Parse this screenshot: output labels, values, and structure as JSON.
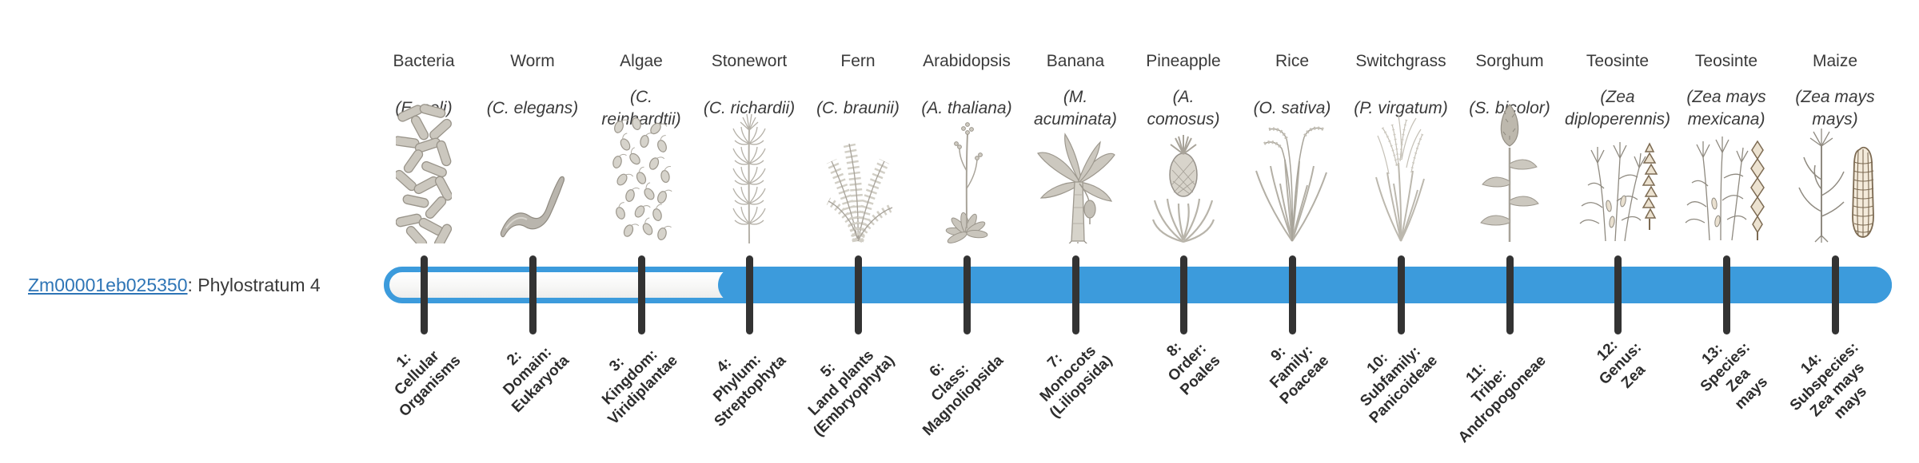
{
  "gene": {
    "id": "Zm00001eb025350",
    "label_suffix": ": Phylostratum 4"
  },
  "timeline": {
    "bar_color": "#3C9BDC",
    "tick_color": "#333333",
    "current_phylostratum": 4,
    "total_strata": 14
  },
  "link_color": "#2E75B6",
  "taxa": [
    {
      "stratum": 1,
      "organism": "Bacteria",
      "species": "(E. coli)",
      "stratum_label": "1:\nCellular\nOrganisms",
      "icon": "bacteria"
    },
    {
      "stratum": 2,
      "organism": "Worm",
      "species": "(C. elegans)",
      "stratum_label": "2:\nDomain:\nEukaryota",
      "icon": "worm"
    },
    {
      "stratum": 3,
      "organism": "Algae",
      "species": "(C. reinhardtii)",
      "stratum_label": "3:\nKingdom:\nViridiplantae",
      "icon": "algae"
    },
    {
      "stratum": 4,
      "organism": "Stonewort",
      "species": "(C. richardii)",
      "stratum_label": "4:\nPhylum:\nStreptophyta",
      "icon": "stonewort"
    },
    {
      "stratum": 5,
      "organism": "Fern",
      "species": "(C. braunii)",
      "stratum_label": "5:\nLand plants\n(Embryophyta)",
      "icon": "fern"
    },
    {
      "stratum": 6,
      "organism": "Arabidopsis",
      "species": "(A. thaliana)",
      "stratum_label": "6:\nClass:\nMagnoliopsida",
      "icon": "arabidopsis"
    },
    {
      "stratum": 7,
      "organism": "Banana",
      "species": "(M. acuminata)",
      "stratum_label": "7:\nMonocots\n(Liliopsida)",
      "icon": "banana"
    },
    {
      "stratum": 8,
      "organism": "Pineapple",
      "species": "(A. comosus)",
      "stratum_label": "8:\nOrder:\nPoales",
      "icon": "pineapple"
    },
    {
      "stratum": 9,
      "organism": "Rice",
      "species": "(O. sativa)",
      "stratum_label": "9:\nFamily:\nPoaceae",
      "icon": "rice"
    },
    {
      "stratum": 10,
      "organism": "Switchgrass",
      "species": "(P. virgatum)",
      "stratum_label": "10:\nSubfamily:\nPanicoideae",
      "icon": "switchgrass"
    },
    {
      "stratum": 11,
      "organism": "Sorghum",
      "species": "(S. bicolor)",
      "stratum_label": "11:\nTribe:\nAndropogoneae",
      "icon": "sorghum"
    },
    {
      "stratum": 12,
      "organism": "Teosinte",
      "species": "(Zea diploperennis)",
      "stratum_label": "12:\nGenus:\nZea",
      "icon": "teosinte-diploperennis"
    },
    {
      "stratum": 13,
      "organism": "Teosinte",
      "species": "(Zea mays mexicana)",
      "stratum_label": "13:\nSpecies:\nZea\nmays",
      "icon": "teosinte-mexicana"
    },
    {
      "stratum": 14,
      "organism": "Maize",
      "species": "(Zea mays mays)",
      "stratum_label": "14:\nSubspecies:\nZea mays\nmays",
      "icon": "maize"
    }
  ]
}
